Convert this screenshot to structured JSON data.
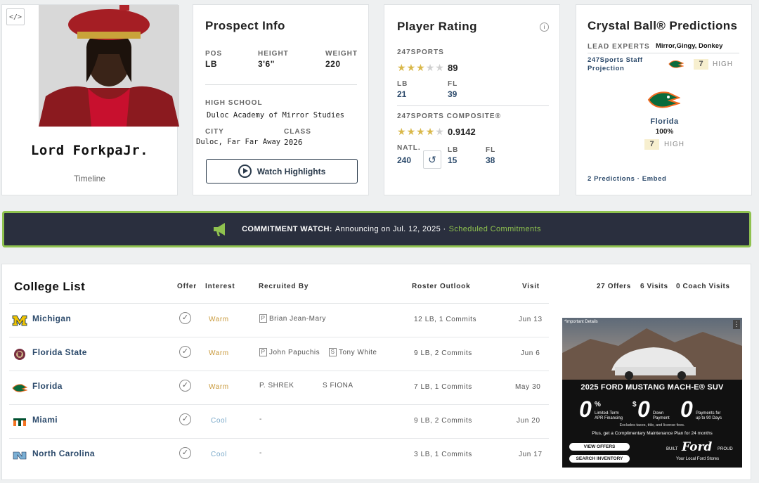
{
  "player": {
    "name": "Lord ForkpaJr.",
    "timeline": "Timeline",
    "embed": "</>"
  },
  "prospect": {
    "title": "Prospect Info",
    "pos_label": "POS",
    "pos": "LB",
    "height_label": "HEIGHT",
    "height": "3'6\"",
    "weight_label": "WEIGHT",
    "weight": "220",
    "school_label": "HIGH SCHOOL",
    "school": "Duloc Academy of Mirror Studies",
    "city_label": "CITY",
    "city": "Duloc, Far Far Away",
    "class_label": "CLASS",
    "class": "2026",
    "watch_label": "Watch Highlights"
  },
  "rating": {
    "title": "Player Rating",
    "info": "i",
    "source1": "247SPORTS",
    "stars1": 3,
    "score1": "89",
    "lb_label": "LB",
    "lb1": "21",
    "fl_label": "FL",
    "fl1": "39",
    "source2": "247SPORTS COMPOSITE®",
    "stars2": 4,
    "score2": "0.9142",
    "natl_label": "NATL.",
    "natl": "240",
    "lb2": "15",
    "fl2": "38"
  },
  "crystal": {
    "title": "Crystal Ball® Predictions",
    "experts_label": "LEAD EXPERTS",
    "experts": "Mirror,Gingy, Donkey",
    "staff_label": "247Sports Staff Projection",
    "staff_rank": "7",
    "high": "HIGH",
    "school": "Florida",
    "pct": "100%",
    "school_rank": "7",
    "footer": "2 Predictions · Embed"
  },
  "commit": {
    "title": "COMMITMENT WATCH:",
    "text": "Announcing on Jul. 12, 2025 ·",
    "link": "Scheduled Commitments"
  },
  "colleges": {
    "title": "College List",
    "headers": {
      "offer": "Offer",
      "interest": "Interest",
      "recruited": "Recruited By",
      "roster": "Roster Outlook",
      "visit": "Visit"
    },
    "summary": {
      "offers": "27 Offers",
      "visits": "6 Visits",
      "coach": "0 Coach Visits"
    },
    "rows": [
      {
        "school": "Michigan",
        "interest": "Warm",
        "r1_tag": "P",
        "r1": "Brian Jean-Mary",
        "r2_tag": "",
        "r2": "",
        "roster": "12 LB, 1 Commits",
        "visit": "Jun 13"
      },
      {
        "school": "Florida State",
        "interest": "Warm",
        "r1_tag": "P",
        "r1": "John Papuchis",
        "r2_tag": "S",
        "r2": "Tony White",
        "roster": "9 LB, 2 Commits",
        "visit": "Jun 6"
      },
      {
        "school": "Florida",
        "interest": "Warm",
        "r1_tag": "",
        "r1": "P. SHREK",
        "r2_tag": "",
        "r2": "S FIONA",
        "roster": "7 LB, 1 Commits",
        "visit": "May 30"
      },
      {
        "school": "Miami",
        "interest": "Cool",
        "r1_tag": "",
        "r1": "-",
        "r2_tag": "",
        "r2": "",
        "roster": "9 LB, 2 Commits",
        "visit": "Jun 20"
      },
      {
        "school": "North Carolina",
        "interest": "Cool",
        "r1_tag": "",
        "r1": "-",
        "r2_tag": "",
        "r2": "",
        "roster": "3 LB, 1 Commits",
        "visit": "Jun 17"
      }
    ]
  },
  "ad": {
    "note": "*Important Details",
    "menu": "⋮",
    "headline": "2025 FORD MUSTANG MACH-E® SUV",
    "zero1": "0",
    "pct_sign": "%",
    "lbl1a": "Limited-Term",
    "lbl1b": "APR Financing",
    "dollar": "$",
    "zero2": "0",
    "lbl2a": "Down",
    "lbl2b": "Payment",
    "zero3": "0",
    "lbl3a": "Payments for",
    "lbl3b": "up to 90 Days",
    "fine1": "Excludes taxes, title, and license fees.",
    "fine2": "Plus, get a Complimentary Maintenance Plan for 24 months",
    "btn1": "VIEW OFFERS",
    "btn2": "SEARCH INVENTORY",
    "built": "BUILT",
    "brand": "Ford",
    "proud": "PROUD",
    "tagline": "Your Local Ford Stores"
  }
}
